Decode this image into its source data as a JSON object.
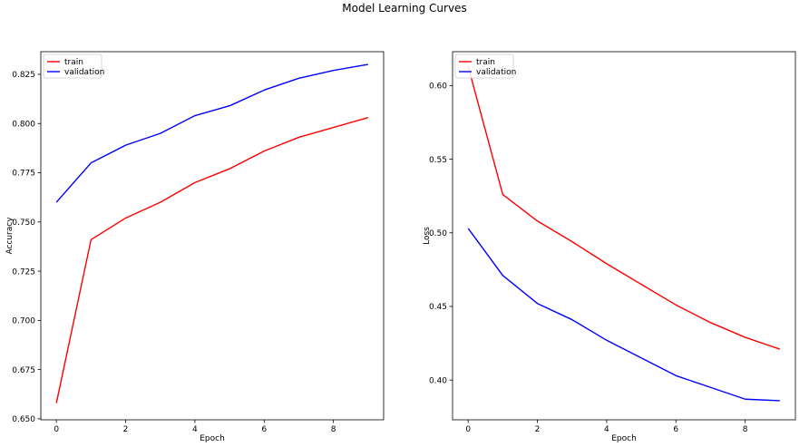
{
  "suptitle": "Model Learning Curves",
  "chart_data": [
    {
      "type": "line",
      "xlabel": "Epoch",
      "ylabel": "Accuracy",
      "x": [
        0,
        1,
        2,
        3,
        4,
        5,
        6,
        7,
        8,
        9
      ],
      "xlim": [
        -0.45,
        9.45
      ],
      "ylim": [
        0.6495,
        0.8365
      ],
      "xticks": [
        0,
        2,
        4,
        6,
        8
      ],
      "yticks": [
        0.65,
        0.675,
        0.7,
        0.725,
        0.75,
        0.775,
        0.8,
        0.825
      ],
      "ytick_labels": [
        "0.650",
        "0.675",
        "0.700",
        "0.725",
        "0.750",
        "0.775",
        "0.800",
        "0.825"
      ],
      "legend": "top-left",
      "grid": false,
      "series": [
        {
          "name": "train",
          "color": "#ff0000",
          "values": [
            0.658,
            0.741,
            0.752,
            0.76,
            0.77,
            0.777,
            0.786,
            0.793,
            0.798,
            0.803
          ]
        },
        {
          "name": "validation",
          "color": "#0000ff",
          "values": [
            0.76,
            0.78,
            0.789,
            0.795,
            0.804,
            0.809,
            0.817,
            0.823,
            0.827,
            0.83
          ]
        }
      ]
    },
    {
      "type": "line",
      "xlabel": "Epoch",
      "ylabel": "Loss",
      "x": [
        0,
        1,
        2,
        3,
        4,
        5,
        6,
        7,
        8,
        9
      ],
      "xlim": [
        -0.45,
        9.45
      ],
      "ylim": [
        0.373,
        0.623
      ],
      "xticks": [
        0,
        2,
        4,
        6,
        8
      ],
      "yticks": [
        0.4,
        0.45,
        0.5,
        0.55,
        0.6
      ],
      "ytick_labels": [
        "0.40",
        "0.45",
        "0.50",
        "0.55",
        "0.60"
      ],
      "legend": "top-left",
      "grid": false,
      "series": [
        {
          "name": "train",
          "color": "#ff0000",
          "values": [
            0.613,
            0.526,
            0.508,
            0.494,
            0.479,
            0.465,
            0.451,
            0.439,
            0.429,
            0.421
          ]
        },
        {
          "name": "validation",
          "color": "#0000ff",
          "values": [
            0.503,
            0.471,
            0.452,
            0.441,
            0.427,
            0.415,
            0.403,
            0.395,
            0.387,
            0.386
          ]
        }
      ]
    }
  ]
}
